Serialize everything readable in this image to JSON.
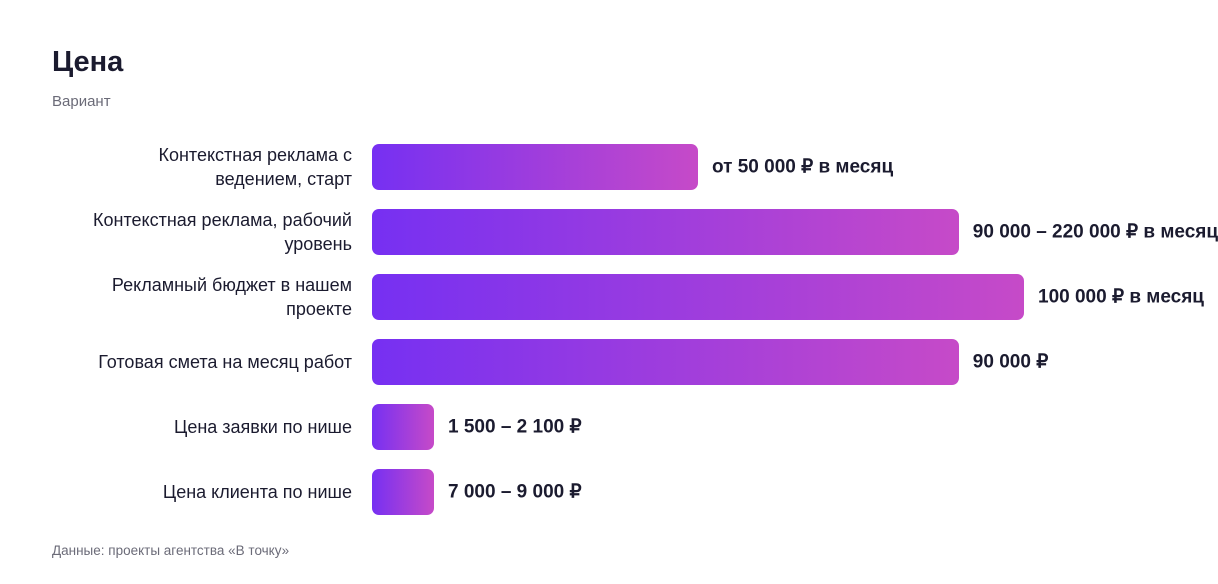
{
  "chart_data": {
    "type": "bar",
    "orientation": "horizontal",
    "title": "Цена",
    "subtitle": "Вариант",
    "categories": [
      "Контекстная реклама с ведением, старт",
      "Контекстная реклама, рабочий уровень",
      "Рекламный бюджет в нашем проекте",
      "Готовая смета на месяц работ",
      "Цена заявки по нише",
      "Цена клиента по нише"
    ],
    "values": [
      50000,
      90000,
      100000,
      90000,
      1500,
      7000
    ],
    "value_labels": [
      "от 50 000 ₽ в месяц",
      "90 000 – 220 000 ₽ в месяц",
      "100 000 ₽ в месяц",
      "90 000 ₽",
      "1 500 – 2 100 ₽",
      "7 000 – 9 000 ₽"
    ],
    "colors": [
      "#7630f2",
      "#c64ac8"
    ],
    "source": "Данные: проекты агентства «В точку»"
  }
}
